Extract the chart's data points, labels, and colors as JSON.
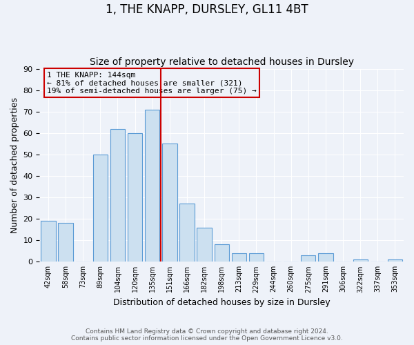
{
  "title": "1, THE KNAPP, DURSLEY, GL11 4BT",
  "subtitle": "Size of property relative to detached houses in Dursley",
  "xlabel": "Distribution of detached houses by size in Dursley",
  "ylabel": "Number of detached properties",
  "bin_labels": [
    "42sqm",
    "58sqm",
    "73sqm",
    "89sqm",
    "104sqm",
    "120sqm",
    "135sqm",
    "151sqm",
    "166sqm",
    "182sqm",
    "198sqm",
    "213sqm",
    "229sqm",
    "244sqm",
    "260sqm",
    "275sqm",
    "291sqm",
    "306sqm",
    "322sqm",
    "337sqm",
    "353sqm"
  ],
  "values": [
    19,
    18,
    0,
    50,
    62,
    60,
    71,
    55,
    27,
    16,
    8,
    4,
    4,
    0,
    0,
    3,
    4,
    0,
    1,
    0,
    1
  ],
  "bar_facecolor": "#cce0f0",
  "bar_edgecolor": "#5b9bd5",
  "property_line_index": 7,
  "property_line_color": "#cc0000",
  "annotation_line1": "1 THE KNAPP: 144sqm",
  "annotation_line2": "← 81% of detached houses are smaller (321)",
  "annotation_line3": "19% of semi-detached houses are larger (75) →",
  "annotation_box_color": "#cc0000",
  "ylim": [
    0,
    90
  ],
  "yticks": [
    0,
    10,
    20,
    30,
    40,
    50,
    60,
    70,
    80,
    90
  ],
  "bg_color": "#eef2f9",
  "grid_color": "#ffffff",
  "footer_line1": "Contains HM Land Registry data © Crown copyright and database right 2024.",
  "footer_line2": "Contains public sector information licensed under the Open Government Licence v3.0.",
  "title_fontsize": 12,
  "subtitle_fontsize": 10,
  "annotation_fontsize": 8,
  "ylabel_fontsize": 9,
  "xlabel_fontsize": 9
}
